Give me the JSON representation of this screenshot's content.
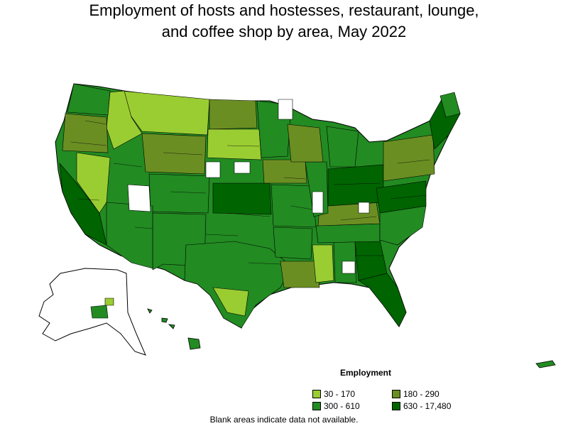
{
  "title": {
    "line1": "Employment of hosts and hostesses, restaurant, lounge,",
    "line2": "and coffee shop by area, May 2022"
  },
  "legend": {
    "title": "Employment",
    "items": [
      {
        "label": "30 - 170",
        "color": "#9acd32"
      },
      {
        "label": "180 - 290",
        "color": "#6b8e23"
      },
      {
        "label": "300 - 610",
        "color": "#228b22"
      },
      {
        "label": "630 - 17,480",
        "color": "#006400"
      }
    ]
  },
  "note": "Blank areas indicate data not available."
}
